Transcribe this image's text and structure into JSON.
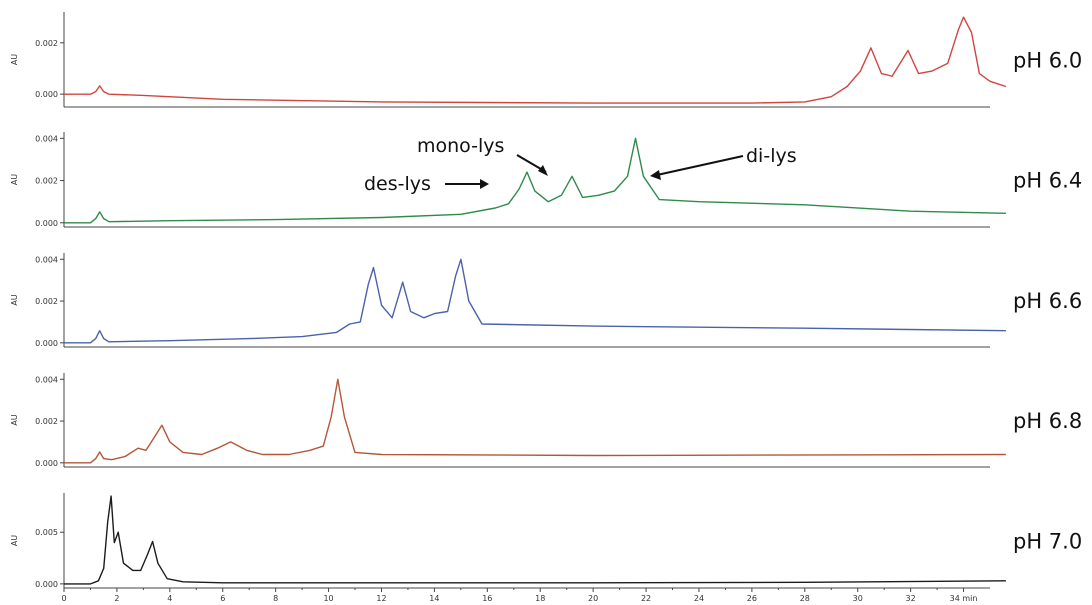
{
  "chart_data": {
    "type": "line",
    "x_axis": {
      "range": [
        0,
        35
      ],
      "ticks": [
        0,
        2,
        4,
        6,
        8,
        10,
        12,
        14,
        16,
        18,
        20,
        22,
        24,
        26,
        28,
        30,
        32,
        34
      ],
      "tick_labels": [
        "0",
        "2",
        "4",
        "6",
        "8",
        "10",
        "12",
        "14",
        "16",
        "18",
        "20",
        "22",
        "24",
        "26",
        "28",
        "30",
        "32",
        "34 min"
      ]
    },
    "panels": [
      {
        "label": "pH 6.0",
        "color": "#d2453f",
        "ylabel": "AU",
        "ylim": [
          -0.0005,
          0.0032
        ],
        "yticks": [
          0.0,
          0.002
        ],
        "ytick_labels": [
          "0.000",
          "0.002"
        ],
        "series": [
          [
            0,
            0.0
          ],
          [
            1.0,
            0.0
          ],
          [
            1.2,
            0.0001
          ],
          [
            1.35,
            0.00032
          ],
          [
            1.5,
            0.0001
          ],
          [
            1.7,
            0.0
          ],
          [
            3,
            -5e-05
          ],
          [
            6,
            -0.0002
          ],
          [
            12,
            -0.0003
          ],
          [
            20,
            -0.00035
          ],
          [
            26,
            -0.00035
          ],
          [
            28,
            -0.0003
          ],
          [
            29,
            -0.0001
          ],
          [
            29.6,
            0.0003
          ],
          [
            30.1,
            0.0009
          ],
          [
            30.5,
            0.0018
          ],
          [
            30.9,
            0.0008
          ],
          [
            31.3,
            0.0007
          ],
          [
            31.9,
            0.0017
          ],
          [
            32.3,
            0.0008
          ],
          [
            32.8,
            0.0009
          ],
          [
            33.4,
            0.0012
          ],
          [
            33.8,
            0.0025
          ],
          [
            34.0,
            0.003
          ],
          [
            34.3,
            0.0024
          ],
          [
            34.6,
            0.0008
          ],
          [
            35,
            0.0005
          ],
          [
            35.6,
            0.0003
          ]
        ]
      },
      {
        "label": "pH 6.4",
        "color": "#2f8b4a",
        "ylabel": "AU",
        "ylim": [
          -0.0002,
          0.0043
        ],
        "yticks": [
          0.0,
          0.002,
          0.004
        ],
        "ytick_labels": [
          "0.000",
          "0.002",
          "0.004"
        ],
        "series": [
          [
            0,
            0.0
          ],
          [
            1.0,
            0.0
          ],
          [
            1.2,
            0.0002
          ],
          [
            1.35,
            0.00052
          ],
          [
            1.5,
            0.0002
          ],
          [
            1.7,
            5e-05
          ],
          [
            4,
            0.0001
          ],
          [
            8,
            0.00015
          ],
          [
            12,
            0.00025
          ],
          [
            15,
            0.0004
          ],
          [
            16.3,
            0.0007
          ],
          [
            16.8,
            0.0009
          ],
          [
            17.2,
            0.0016
          ],
          [
            17.5,
            0.0024
          ],
          [
            17.8,
            0.0015
          ],
          [
            18.3,
            0.001
          ],
          [
            18.8,
            0.0013
          ],
          [
            19.2,
            0.0022
          ],
          [
            19.6,
            0.0012
          ],
          [
            20.2,
            0.0013
          ],
          [
            20.8,
            0.0015
          ],
          [
            21.3,
            0.0022
          ],
          [
            21.6,
            0.004
          ],
          [
            21.9,
            0.0022
          ],
          [
            22.5,
            0.0011
          ],
          [
            24,
            0.001
          ],
          [
            28,
            0.00085
          ],
          [
            32,
            0.00055
          ],
          [
            35.6,
            0.00045
          ]
        ]
      },
      {
        "label": "pH 6.6",
        "color": "#4a62ad",
        "ylabel": "AU",
        "ylim": [
          -0.0002,
          0.0043
        ],
        "yticks": [
          0.0,
          0.002,
          0.004
        ],
        "ytick_labels": [
          "0.000",
          "0.002",
          "0.004"
        ],
        "series": [
          [
            0,
            0.0
          ],
          [
            1.0,
            0.0
          ],
          [
            1.2,
            0.0002
          ],
          [
            1.35,
            0.00058
          ],
          [
            1.5,
            0.0002
          ],
          [
            1.7,
            5e-05
          ],
          [
            4,
            0.0001
          ],
          [
            7,
            0.0002
          ],
          [
            9,
            0.0003
          ],
          [
            10.3,
            0.0005
          ],
          [
            10.8,
            0.0009
          ],
          [
            11.2,
            0.001
          ],
          [
            11.5,
            0.0028
          ],
          [
            11.7,
            0.0036
          ],
          [
            12.0,
            0.0018
          ],
          [
            12.4,
            0.0012
          ],
          [
            12.8,
            0.0029
          ],
          [
            13.1,
            0.0015
          ],
          [
            13.6,
            0.0012
          ],
          [
            14.0,
            0.0014
          ],
          [
            14.5,
            0.0015
          ],
          [
            14.8,
            0.0032
          ],
          [
            15.0,
            0.004
          ],
          [
            15.3,
            0.002
          ],
          [
            15.8,
            0.0009
          ],
          [
            20,
            0.0008
          ],
          [
            28,
            0.0007
          ],
          [
            35.6,
            0.00058
          ]
        ]
      },
      {
        "label": "pH 6.8",
        "color": "#b3573a",
        "ylabel": "AU",
        "ylim": [
          -0.0002,
          0.0043
        ],
        "yticks": [
          0.0,
          0.002,
          0.004
        ],
        "ytick_labels": [
          "0.000",
          "0.002",
          "0.004"
        ],
        "series": [
          [
            0,
            0.0
          ],
          [
            1.0,
            0.0
          ],
          [
            1.2,
            0.0002
          ],
          [
            1.35,
            0.00052
          ],
          [
            1.5,
            0.0002
          ],
          [
            1.8,
            0.00015
          ],
          [
            2.3,
            0.0003
          ],
          [
            2.8,
            0.0007
          ],
          [
            3.1,
            0.0006
          ],
          [
            3.4,
            0.0012
          ],
          [
            3.7,
            0.0018
          ],
          [
            4.0,
            0.001
          ],
          [
            4.5,
            0.0005
          ],
          [
            5.2,
            0.0004
          ],
          [
            5.8,
            0.0007
          ],
          [
            6.3,
            0.001
          ],
          [
            6.9,
            0.0006
          ],
          [
            7.5,
            0.0004
          ],
          [
            8.5,
            0.0004
          ],
          [
            9.3,
            0.0006
          ],
          [
            9.8,
            0.0008
          ],
          [
            10.1,
            0.0022
          ],
          [
            10.35,
            0.004
          ],
          [
            10.6,
            0.0022
          ],
          [
            11.0,
            0.0005
          ],
          [
            12,
            0.0004
          ],
          [
            20,
            0.00035
          ],
          [
            35.6,
            0.0004
          ]
        ]
      },
      {
        "label": "pH 7.0",
        "color": "#1c1c1c",
        "ylabel": "AU",
        "ylim": [
          -0.0004,
          0.0088
        ],
        "yticks": [
          0.0,
          0.005
        ],
        "ytick_labels": [
          "0.000",
          "0.005"
        ],
        "series": [
          [
            0,
            0.0
          ],
          [
            1.0,
            0.0
          ],
          [
            1.3,
            0.0003
          ],
          [
            1.5,
            0.0015
          ],
          [
            1.65,
            0.006
          ],
          [
            1.78,
            0.0085
          ],
          [
            1.9,
            0.004
          ],
          [
            2.05,
            0.005
          ],
          [
            2.25,
            0.002
          ],
          [
            2.6,
            0.0013
          ],
          [
            2.9,
            0.0013
          ],
          [
            3.15,
            0.0028
          ],
          [
            3.35,
            0.0041
          ],
          [
            3.55,
            0.002
          ],
          [
            3.9,
            0.0005
          ],
          [
            4.5,
            0.0002
          ],
          [
            6,
            0.0001
          ],
          [
            12,
            0.0001
          ],
          [
            20,
            0.0001
          ],
          [
            28,
            0.00015
          ],
          [
            35.6,
            0.0003
          ]
        ]
      }
    ]
  },
  "annotations": {
    "mono_lys": "mono-lys",
    "des_lys": "des-lys",
    "di_lys": "di-lys"
  }
}
